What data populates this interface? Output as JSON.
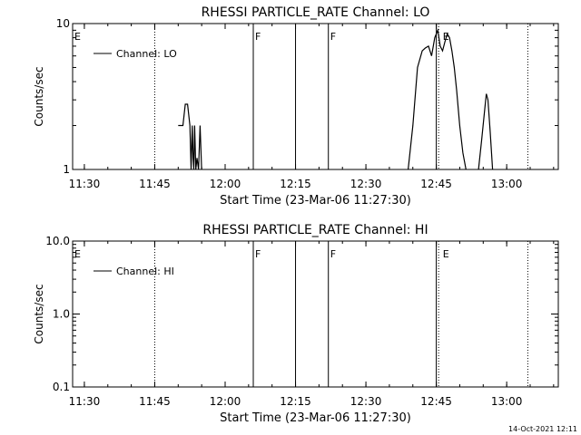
{
  "footer_timestamp": "14-Oct-2021 12:11",
  "chart_data": [
    {
      "type": "line",
      "title": "RHESSI PARTICLE_RATE Channel: LO",
      "xlabel": "Start Time (23-Mar-06 11:27:30)",
      "ylabel": "Counts/sec",
      "yscale": "log",
      "xlim": [
        "11:27:30",
        "13:11:00"
      ],
      "ylim": [
        1,
        10
      ],
      "x_ticks": [
        "11:30",
        "11:45",
        "12:00",
        "12:15",
        "12:30",
        "12:45",
        "13:00"
      ],
      "y_ticks": [
        "1",
        "10"
      ],
      "grid": false,
      "legend": {
        "position": "top-left",
        "entries": [
          "Channel: LO"
        ]
      },
      "annotations": [
        {
          "text": "E",
          "x": "11:27:30"
        },
        {
          "text": "F",
          "x": "12:06:00"
        },
        {
          "text": "F",
          "x": "12:22:00"
        },
        {
          "text": "E",
          "x": "12:46:00"
        }
      ],
      "markers": [
        {
          "x": "11:45:00",
          "style": "dotted"
        },
        {
          "x": "12:06:00",
          "style": "solid"
        },
        {
          "x": "12:15:00",
          "style": "solid"
        },
        {
          "x": "12:22:00",
          "style": "solid"
        },
        {
          "x": "12:45:00",
          "style": "solid"
        },
        {
          "x": "12:45:30",
          "style": "dotted"
        },
        {
          "x": "13:04:30",
          "style": "dotted"
        }
      ],
      "series": [
        {
          "name": "Channel: LO",
          "segments": [
            {
              "x": [
                "11:50:00",
                "11:51:00",
                "11:51:30",
                "11:52:00",
                "11:52:30",
                "11:52:45",
                "11:53:00",
                "11:53:10",
                "11:53:20",
                "11:53:30",
                "11:53:45",
                "11:54:00",
                "11:54:20",
                "11:54:40",
                "11:55:00"
              ],
              "y": [
                2.0,
                2.0,
                2.8,
                2.8,
                2.0,
                1.0,
                2.0,
                1.2,
                1.0,
                2.0,
                1.0,
                1.2,
                1.0,
                2.0,
                1.0
              ]
            },
            {
              "x": [
                "12:39:00",
                "12:40:00",
                "12:41:00",
                "12:42:00",
                "12:42:40",
                "12:43:20",
                "12:44:00",
                "12:44:40",
                "12:45:20",
                "12:45:50",
                "12:46:20",
                "12:46:50",
                "12:47:20",
                "12:47:50",
                "12:48:20",
                "12:48:50",
                "12:49:20",
                "12:50:00",
                "12:50:40",
                "12:51:20"
              ],
              "y": [
                1.0,
                2.0,
                5.0,
                6.5,
                6.8,
                7.0,
                6.0,
                8.0,
                9.0,
                7.0,
                6.5,
                7.5,
                8.5,
                8.0,
                6.5,
                5.0,
                3.5,
                2.0,
                1.3,
                1.0
              ]
            },
            {
              "x": [
                "12:54:00",
                "12:54:40",
                "12:55:20",
                "12:55:40",
                "12:56:00",
                "12:56:30",
                "12:57:00"
              ],
              "y": [
                1.0,
                1.6,
                2.6,
                3.3,
                3.0,
                1.8,
                1.0
              ]
            }
          ]
        }
      ]
    },
    {
      "type": "line",
      "title": "RHESSI PARTICLE_RATE Channel: HI",
      "xlabel": "Start Time (23-Mar-06 11:27:30)",
      "ylabel": "Counts/sec",
      "yscale": "log",
      "xlim": [
        "11:27:30",
        "13:11:00"
      ],
      "ylim": [
        0.1,
        10
      ],
      "x_ticks": [
        "11:30",
        "11:45",
        "12:00",
        "12:15",
        "12:30",
        "12:45",
        "13:00"
      ],
      "y_ticks": [
        "0.1",
        "1.0",
        "10.0"
      ],
      "grid": false,
      "legend": {
        "position": "top-left",
        "entries": [
          "Channel: HI"
        ]
      },
      "annotations": [
        {
          "text": "E",
          "x": "11:27:30"
        },
        {
          "text": "F",
          "x": "12:06:00"
        },
        {
          "text": "F",
          "x": "12:22:00"
        },
        {
          "text": "E",
          "x": "12:46:00"
        }
      ],
      "markers": [
        {
          "x": "11:45:00",
          "style": "dotted"
        },
        {
          "x": "12:06:00",
          "style": "solid"
        },
        {
          "x": "12:15:00",
          "style": "solid"
        },
        {
          "x": "12:22:00",
          "style": "solid"
        },
        {
          "x": "12:45:00",
          "style": "solid"
        },
        {
          "x": "12:45:30",
          "style": "dotted"
        },
        {
          "x": "13:04:30",
          "style": "dotted"
        }
      ],
      "series": [
        {
          "name": "Channel: HI",
          "segments": []
        }
      ]
    }
  ]
}
